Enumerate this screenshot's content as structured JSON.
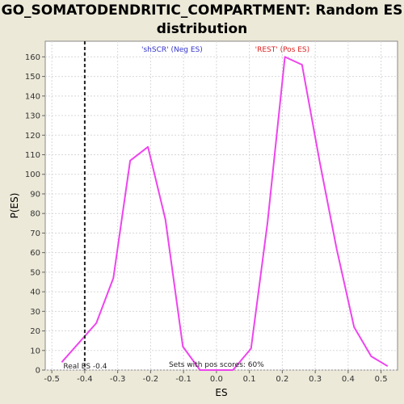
{
  "page": {
    "title": "GO_SOMATODENDRITIC_COMPARTMENT: Random ES\ndistribution"
  },
  "chart_data": {
    "type": "line",
    "title": "GO_SOMATODENDRITIC_COMPARTMENT: Random ES distribution",
    "xlabel": "ES",
    "ylabel": "P(ES)",
    "xlim": [
      -0.52,
      0.55
    ],
    "ylim": [
      0,
      168
    ],
    "x_ticks": [
      -0.5,
      -0.4,
      -0.3,
      -0.2,
      -0.1,
      0.0,
      0.1,
      0.2,
      0.3,
      0.4,
      0.5
    ],
    "x_tick_labels": [
      "-0.5",
      "-0.4",
      "-0.3",
      "-0.2",
      "-0.1",
      "0.0",
      "0.1",
      "0.2",
      "0.3",
      "0.4",
      "0.5"
    ],
    "y_ticks": [
      0,
      10,
      20,
      30,
      40,
      50,
      60,
      70,
      80,
      90,
      100,
      110,
      120,
      130,
      140,
      150,
      160
    ],
    "grid": true,
    "series": [
      {
        "color": "#ee44ee",
        "x": [
          -0.47,
          -0.365,
          -0.313,
          -0.262,
          -0.208,
          -0.155,
          -0.102,
          -0.05,
          0.0,
          0.05,
          0.105,
          0.155,
          0.208,
          0.26,
          0.313,
          0.365,
          0.418,
          0.47,
          0.52
        ],
        "y": [
          4,
          24,
          47,
          107,
          114,
          77,
          12,
          0,
          0,
          0,
          11,
          75,
          160,
          156,
          107,
          62,
          22,
          7,
          2
        ]
      }
    ],
    "annotations": {
      "neg_label": "'shSCR' (Neg ES)",
      "pos_label": "'REST' (Pos ES)",
      "neg_color": "#3333cc",
      "pos_color": "#dd2222",
      "real_es_label": "Real ES -0.4",
      "real_es_value": -0.4,
      "pos_scores_label": "Sets with pos scores: 60%"
    }
  }
}
